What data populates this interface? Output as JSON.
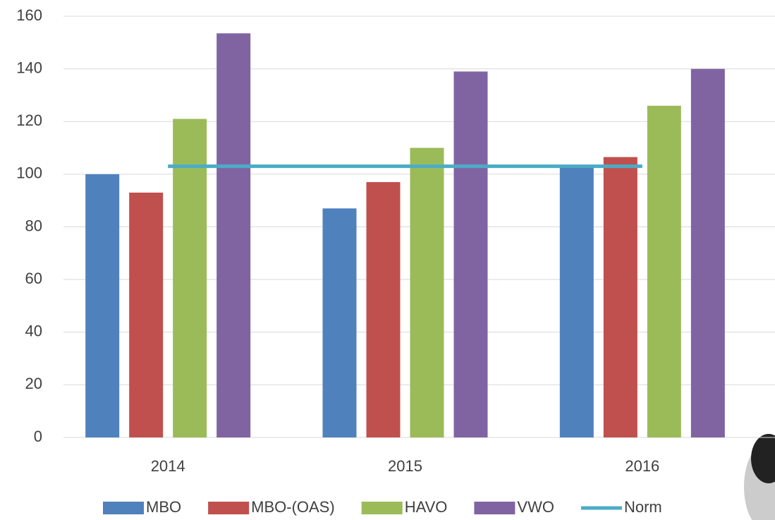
{
  "chart_data": {
    "type": "bar",
    "categories": [
      "2014",
      "2015",
      "2016"
    ],
    "series": [
      {
        "name": "MBO",
        "color": "#4f81bd",
        "values": [
          100,
          87,
          103
        ]
      },
      {
        "name": "MBO-(OAS)",
        "color": "#c0504d",
        "values": [
          93,
          97,
          106.5
        ]
      },
      {
        "name": "HAVO",
        "color": "#9bbb59",
        "values": [
          121,
          110,
          126
        ]
      },
      {
        "name": "VWO",
        "color": "#8064a2",
        "values": [
          153.5,
          139,
          140
        ]
      },
      {
        "name": "Norm",
        "color": "#4bacc6",
        "type": "line",
        "values": [
          103,
          103,
          103
        ]
      }
    ],
    "ylim": [
      0,
      160
    ],
    "yticks": [
      0,
      20,
      40,
      60,
      80,
      100,
      120,
      140,
      160
    ],
    "grid": true,
    "legend": "bottom"
  }
}
